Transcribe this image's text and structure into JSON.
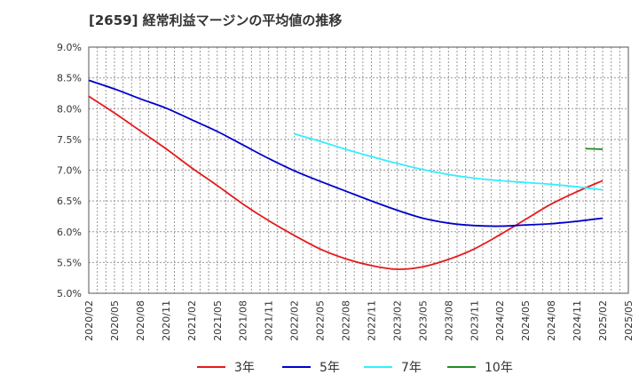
{
  "chart_data": {
    "type": "line",
    "title": "[2659]  経常利益マージンの平均値の推移",
    "xlabel": "",
    "ylabel": "",
    "x": [
      "2020/02",
      "2020/05",
      "2020/08",
      "2020/11",
      "2021/02",
      "2021/05",
      "2021/08",
      "2021/11",
      "2022/02",
      "2022/05",
      "2022/08",
      "2022/11",
      "2023/02",
      "2023/05",
      "2023/08",
      "2023/11",
      "2024/02",
      "2024/05",
      "2024/08",
      "2024/11",
      "2025/02",
      "2025/05"
    ],
    "y_ticks": [
      "9.0%",
      "8.5%",
      "8.0%",
      "7.5%",
      "7.0%",
      "6.5%",
      "6.0%",
      "5.5%",
      "5.0%"
    ],
    "ylim": [
      5.0,
      9.0
    ],
    "grid": true,
    "legend_position": "bottom",
    "series": [
      {
        "name": "3年",
        "color": "#e41a1c",
        "values": [
          8.2,
          7.93,
          7.64,
          7.35,
          7.04,
          6.75,
          6.45,
          6.18,
          5.94,
          5.72,
          5.56,
          5.45,
          5.39,
          5.43,
          5.55,
          5.72,
          5.95,
          6.2,
          6.45,
          6.65,
          6.83,
          null
        ]
      },
      {
        "name": "5年",
        "color": "#0000cc",
        "values": [
          8.46,
          8.32,
          8.16,
          8.01,
          7.82,
          7.63,
          7.41,
          7.19,
          6.99,
          6.82,
          6.66,
          6.5,
          6.35,
          6.22,
          6.14,
          6.1,
          6.09,
          6.11,
          6.13,
          6.17,
          6.22,
          null
        ]
      },
      {
        "name": "7年",
        "color": "#33eeff",
        "values": [
          null,
          null,
          null,
          null,
          null,
          null,
          null,
          null,
          7.59,
          7.47,
          7.34,
          7.22,
          7.11,
          7.01,
          6.93,
          6.87,
          6.83,
          6.8,
          6.77,
          6.73,
          6.68,
          null
        ]
      },
      {
        "name": "10年",
        "color": "#228b22",
        "values": [
          null,
          null,
          null,
          null,
          null,
          null,
          null,
          null,
          null,
          null,
          null,
          null,
          null,
          null,
          null,
          null,
          null,
          null,
          null,
          null,
          7.34,
          null
        ]
      }
    ],
    "segment_10y": {
      "x": [
        "2024/12",
        "2025/02"
      ],
      "values": [
        7.35,
        7.34
      ]
    }
  }
}
